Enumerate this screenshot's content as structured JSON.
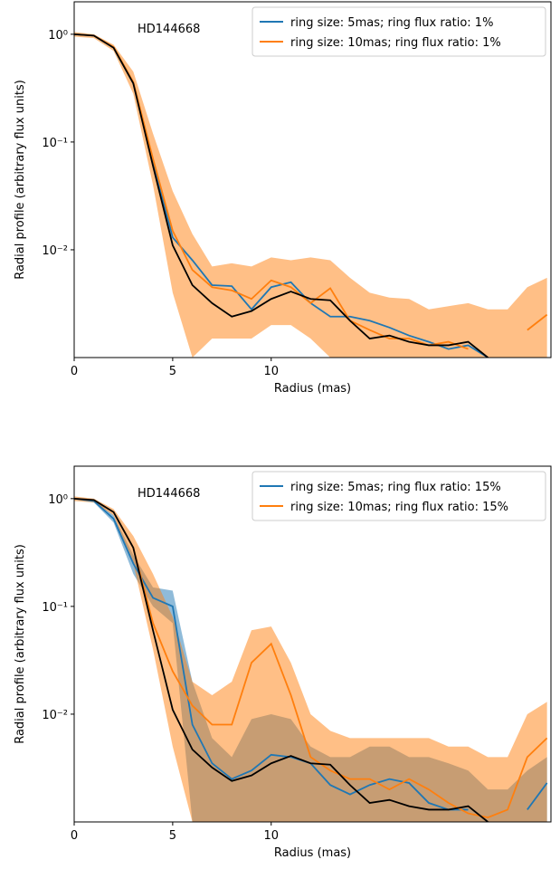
{
  "chart_data": [
    {
      "type": "line",
      "annotation": "HD144668",
      "xlabel": "Radius (mas)",
      "ylabel": "Radial profile (arbitrary flux units)",
      "log_y": true,
      "legend": "upper right",
      "xlim": [
        0,
        24.2
      ],
      "xticks": [
        0,
        5,
        10
      ],
      "ylim": [
        0.001,
        2
      ],
      "yticks": [
        {
          "value": 1,
          "label": "10⁰"
        },
        {
          "value": 0.1,
          "label": "10⁻¹"
        },
        {
          "value": 0.01,
          "label": "10⁻²"
        }
      ],
      "x": [
        0,
        1,
        2,
        3,
        4,
        5,
        6,
        7,
        8,
        9,
        10,
        11,
        12,
        13,
        14,
        15,
        16,
        17,
        18,
        19,
        20,
        21,
        22,
        23,
        24
      ],
      "series": [
        {
          "name": "ring size: 5mas; ring flux ratio: 1%",
          "color": "#1f77b4",
          "values": [
            1,
            0.97,
            0.75,
            0.35,
            0.065,
            0.013,
            0.008,
            0.0047,
            0.0046,
            0.0028,
            0.0045,
            0.005,
            0.0032,
            0.0024,
            0.0024,
            0.0022,
            0.0019,
            0.0016,
            0.0014,
            0.0012,
            0.0013,
            0.001,
            null,
            null,
            0.0012
          ]
        },
        {
          "name": "ring size: 10mas; ring flux ratio: 1%",
          "color": "#ff7f0e",
          "values": [
            1,
            0.97,
            0.76,
            0.36,
            0.07,
            0.015,
            0.0065,
            0.0045,
            0.0042,
            0.0035,
            0.0052,
            0.0045,
            0.0032,
            0.0044,
            0.0022,
            0.0018,
            0.0015,
            0.0015,
            0.0013,
            0.0014,
            0.0012,
            null,
            null,
            0.0018,
            0.0025
          ],
          "band_lower": [
            0.95,
            0.92,
            0.7,
            0.28,
            0.04,
            0.004,
            0.001,
            0.0015,
            0.0015,
            0.0015,
            0.002,
            0.002,
            0.0015,
            0.001,
            0.001,
            0.001,
            0.001,
            0.001,
            0.001,
            0.001,
            0.001,
            0.001,
            0.001,
            0.001,
            0.001
          ],
          "band_upper": [
            1.05,
            1.0,
            0.8,
            0.45,
            0.12,
            0.035,
            0.014,
            0.007,
            0.0075,
            0.007,
            0.0085,
            0.008,
            0.0085,
            0.008,
            0.0055,
            0.004,
            0.0036,
            0.0035,
            0.0028,
            0.003,
            0.0032,
            0.0028,
            0.0028,
            0.0045,
            0.0055
          ]
        },
        {
          "color": "#000000",
          "values": [
            1,
            0.97,
            0.75,
            0.35,
            0.06,
            0.011,
            0.0047,
            0.0032,
            0.0024,
            0.0027,
            0.0035,
            0.0041,
            0.0035,
            0.0034,
            0.0022,
            0.0015,
            0.0016,
            0.0014,
            0.0013,
            0.0013,
            0.0014,
            0.001,
            null,
            null,
            null
          ]
        }
      ]
    },
    {
      "type": "line",
      "annotation": "HD144668",
      "xlabel": "Radius (mas)",
      "ylabel": "Radial profile (arbitrary flux units)",
      "log_y": true,
      "legend": "upper right",
      "xlim": [
        0,
        24.2
      ],
      "xticks": [
        0,
        5,
        10
      ],
      "ylim": [
        0.001,
        2
      ],
      "yticks": [
        {
          "value": 1,
          "label": "10⁰"
        },
        {
          "value": 0.1,
          "label": "10⁻¹"
        },
        {
          "value": 0.01,
          "label": "10⁻²"
        }
      ],
      "x": [
        0,
        1,
        2,
        3,
        4,
        5,
        6,
        7,
        8,
        9,
        10,
        11,
        12,
        13,
        14,
        15,
        16,
        17,
        18,
        19,
        20,
        21,
        22,
        23,
        24
      ],
      "series": [
        {
          "name": "ring size: 5mas; ring flux ratio: 15%",
          "color": "#1f77b4",
          "values": [
            1,
            0.95,
            0.65,
            0.25,
            0.12,
            0.1,
            0.008,
            0.0035,
            0.0025,
            0.003,
            0.0042,
            0.004,
            0.0035,
            0.0022,
            0.0018,
            0.0022,
            0.0025,
            0.0023,
            0.0015,
            0.0013,
            0.0013,
            null,
            null,
            0.0013,
            0.0023
          ],
          "band_lower": [
            0.98,
            0.92,
            0.6,
            0.2,
            0.1,
            0.07,
            0.001,
            0.001,
            0.001,
            0.001,
            0.001,
            0.001,
            0.001,
            0.001,
            0.001,
            0.001,
            0.001,
            0.001,
            0.001,
            0.001,
            0.001,
            0.001,
            0.001,
            0.001,
            0.001
          ],
          "band_upper": [
            1.02,
            0.98,
            0.7,
            0.3,
            0.15,
            0.14,
            0.02,
            0.006,
            0.004,
            0.009,
            0.01,
            0.009,
            0.005,
            0.004,
            0.004,
            0.005,
            0.005,
            0.004,
            0.004,
            0.0035,
            0.003,
            0.002,
            0.002,
            0.003,
            0.004
          ]
        },
        {
          "name": "ring size: 10mas; ring flux ratio: 15%",
          "color": "#ff7f0e",
          "values": [
            1,
            0.97,
            0.75,
            0.35,
            0.07,
            0.025,
            0.012,
            0.008,
            0.008,
            0.03,
            0.045,
            0.015,
            0.004,
            0.003,
            0.0025,
            0.0025,
            0.002,
            0.0025,
            0.002,
            0.0015,
            0.0012,
            0.0011,
            0.0013,
            0.004,
            0.006
          ],
          "band_lower": [
            0.95,
            0.92,
            0.7,
            0.25,
            0.04,
            0.005,
            0.001,
            0.001,
            0.001,
            0.001,
            0.001,
            0.001,
            0.001,
            0.001,
            0.001,
            0.001,
            0.001,
            0.001,
            0.001,
            0.001,
            0.001,
            0.001,
            0.001,
            0.001,
            0.001
          ],
          "band_upper": [
            1.05,
            1.0,
            0.8,
            0.45,
            0.2,
            0.08,
            0.02,
            0.015,
            0.02,
            0.06,
            0.065,
            0.03,
            0.01,
            0.007,
            0.006,
            0.006,
            0.006,
            0.006,
            0.006,
            0.005,
            0.005,
            0.004,
            0.004,
            0.01,
            0.013
          ]
        },
        {
          "color": "#000000",
          "values": [
            1,
            0.97,
            0.75,
            0.35,
            0.06,
            0.011,
            0.0047,
            0.0032,
            0.0024,
            0.0027,
            0.0035,
            0.0041,
            0.0035,
            0.0034,
            0.0022,
            0.0015,
            0.0016,
            0.0014,
            0.0013,
            0.0013,
            0.0014,
            0.001,
            null,
            null,
            null
          ]
        }
      ]
    }
  ]
}
